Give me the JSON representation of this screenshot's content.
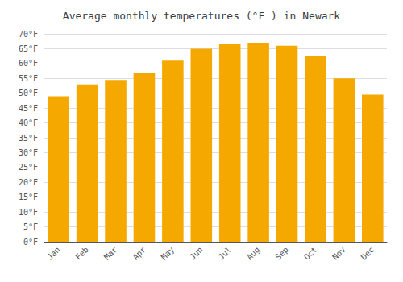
{
  "chart_data": {
    "type": "bar",
    "title": "Average monthly temperatures (°F ) in Newark",
    "categories": [
      "Jan",
      "Feb",
      "Mar",
      "Apr",
      "May",
      "Jun",
      "Jul",
      "Aug",
      "Sep",
      "Oct",
      "Nov",
      "Dec"
    ],
    "values": [
      49,
      53,
      54.5,
      57,
      61,
      65,
      66.5,
      67,
      66,
      62.5,
      55,
      49.5
    ],
    "color": "#F5A800",
    "ylim": [
      0,
      70
    ],
    "yticks": [
      {
        "value": 0,
        "label": "0°F"
      },
      {
        "value": 5,
        "label": "5°F"
      },
      {
        "value": 10,
        "label": "10°F"
      },
      {
        "value": 15,
        "label": "15°F"
      },
      {
        "value": 20,
        "label": "20°F"
      },
      {
        "value": 25,
        "label": "25°F"
      },
      {
        "value": 30,
        "label": "30°F"
      },
      {
        "value": 35,
        "label": "35°F"
      },
      {
        "value": 40,
        "label": "40°F"
      },
      {
        "value": 45,
        "label": "45°F"
      },
      {
        "value": 50,
        "label": "50°F"
      },
      {
        "value": 55,
        "label": "55°F"
      },
      {
        "value": 60,
        "label": "60°F"
      },
      {
        "value": 65,
        "label": "65°F"
      },
      {
        "value": 70,
        "label": "70°F"
      }
    ],
    "grid": true
  }
}
